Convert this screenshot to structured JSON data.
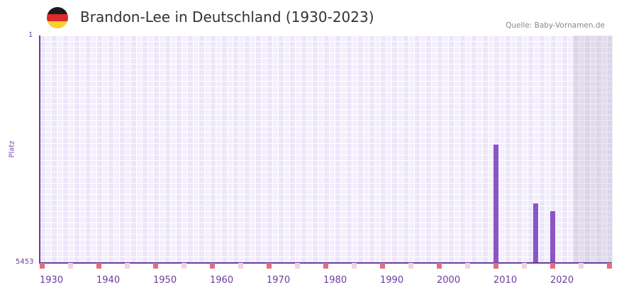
{
  "header": {
    "title": "Brandon-Lee in Deutschland (1930-2023)",
    "source": "Quelle: Baby-Vornamen.de",
    "flag_colors": [
      "#1a1a1a",
      "#dd2a2a",
      "#f9cf2e"
    ]
  },
  "axes": {
    "y_title": "Platz",
    "y_top_label": "1",
    "y_bottom_label": "5453",
    "x_ticks": [
      "1930",
      "1940",
      "1950",
      "1960",
      "1970",
      "1980",
      "1990",
      "2000",
      "2010",
      "2020"
    ]
  },
  "colors": {
    "bar": "#8b55c7",
    "axis": "#6a3d9a",
    "decade_marker": "#e07078",
    "mid_marker": "#f5d3dc"
  },
  "chart_data": {
    "type": "bar",
    "title": "Brandon-Lee in Deutschland (1930-2023)",
    "xlabel": "",
    "ylabel": "Platz",
    "x_range": [
      1930,
      2030
    ],
    "y_range": [
      1,
      5453
    ],
    "y_inverted": true,
    "y_scale": "log",
    "grid": true,
    "categories": [
      "2010",
      "2017",
      "2020"
    ],
    "series": [
      {
        "name": "Platz",
        "values": [
          60,
          560,
          750
        ]
      }
    ],
    "bar_height_fraction": [
      0.52,
      0.26,
      0.225
    ],
    "shaded_region": [
      2024,
      2030
    ],
    "annotations": [
      "Quelle: Baby-Vornamen.de"
    ]
  }
}
